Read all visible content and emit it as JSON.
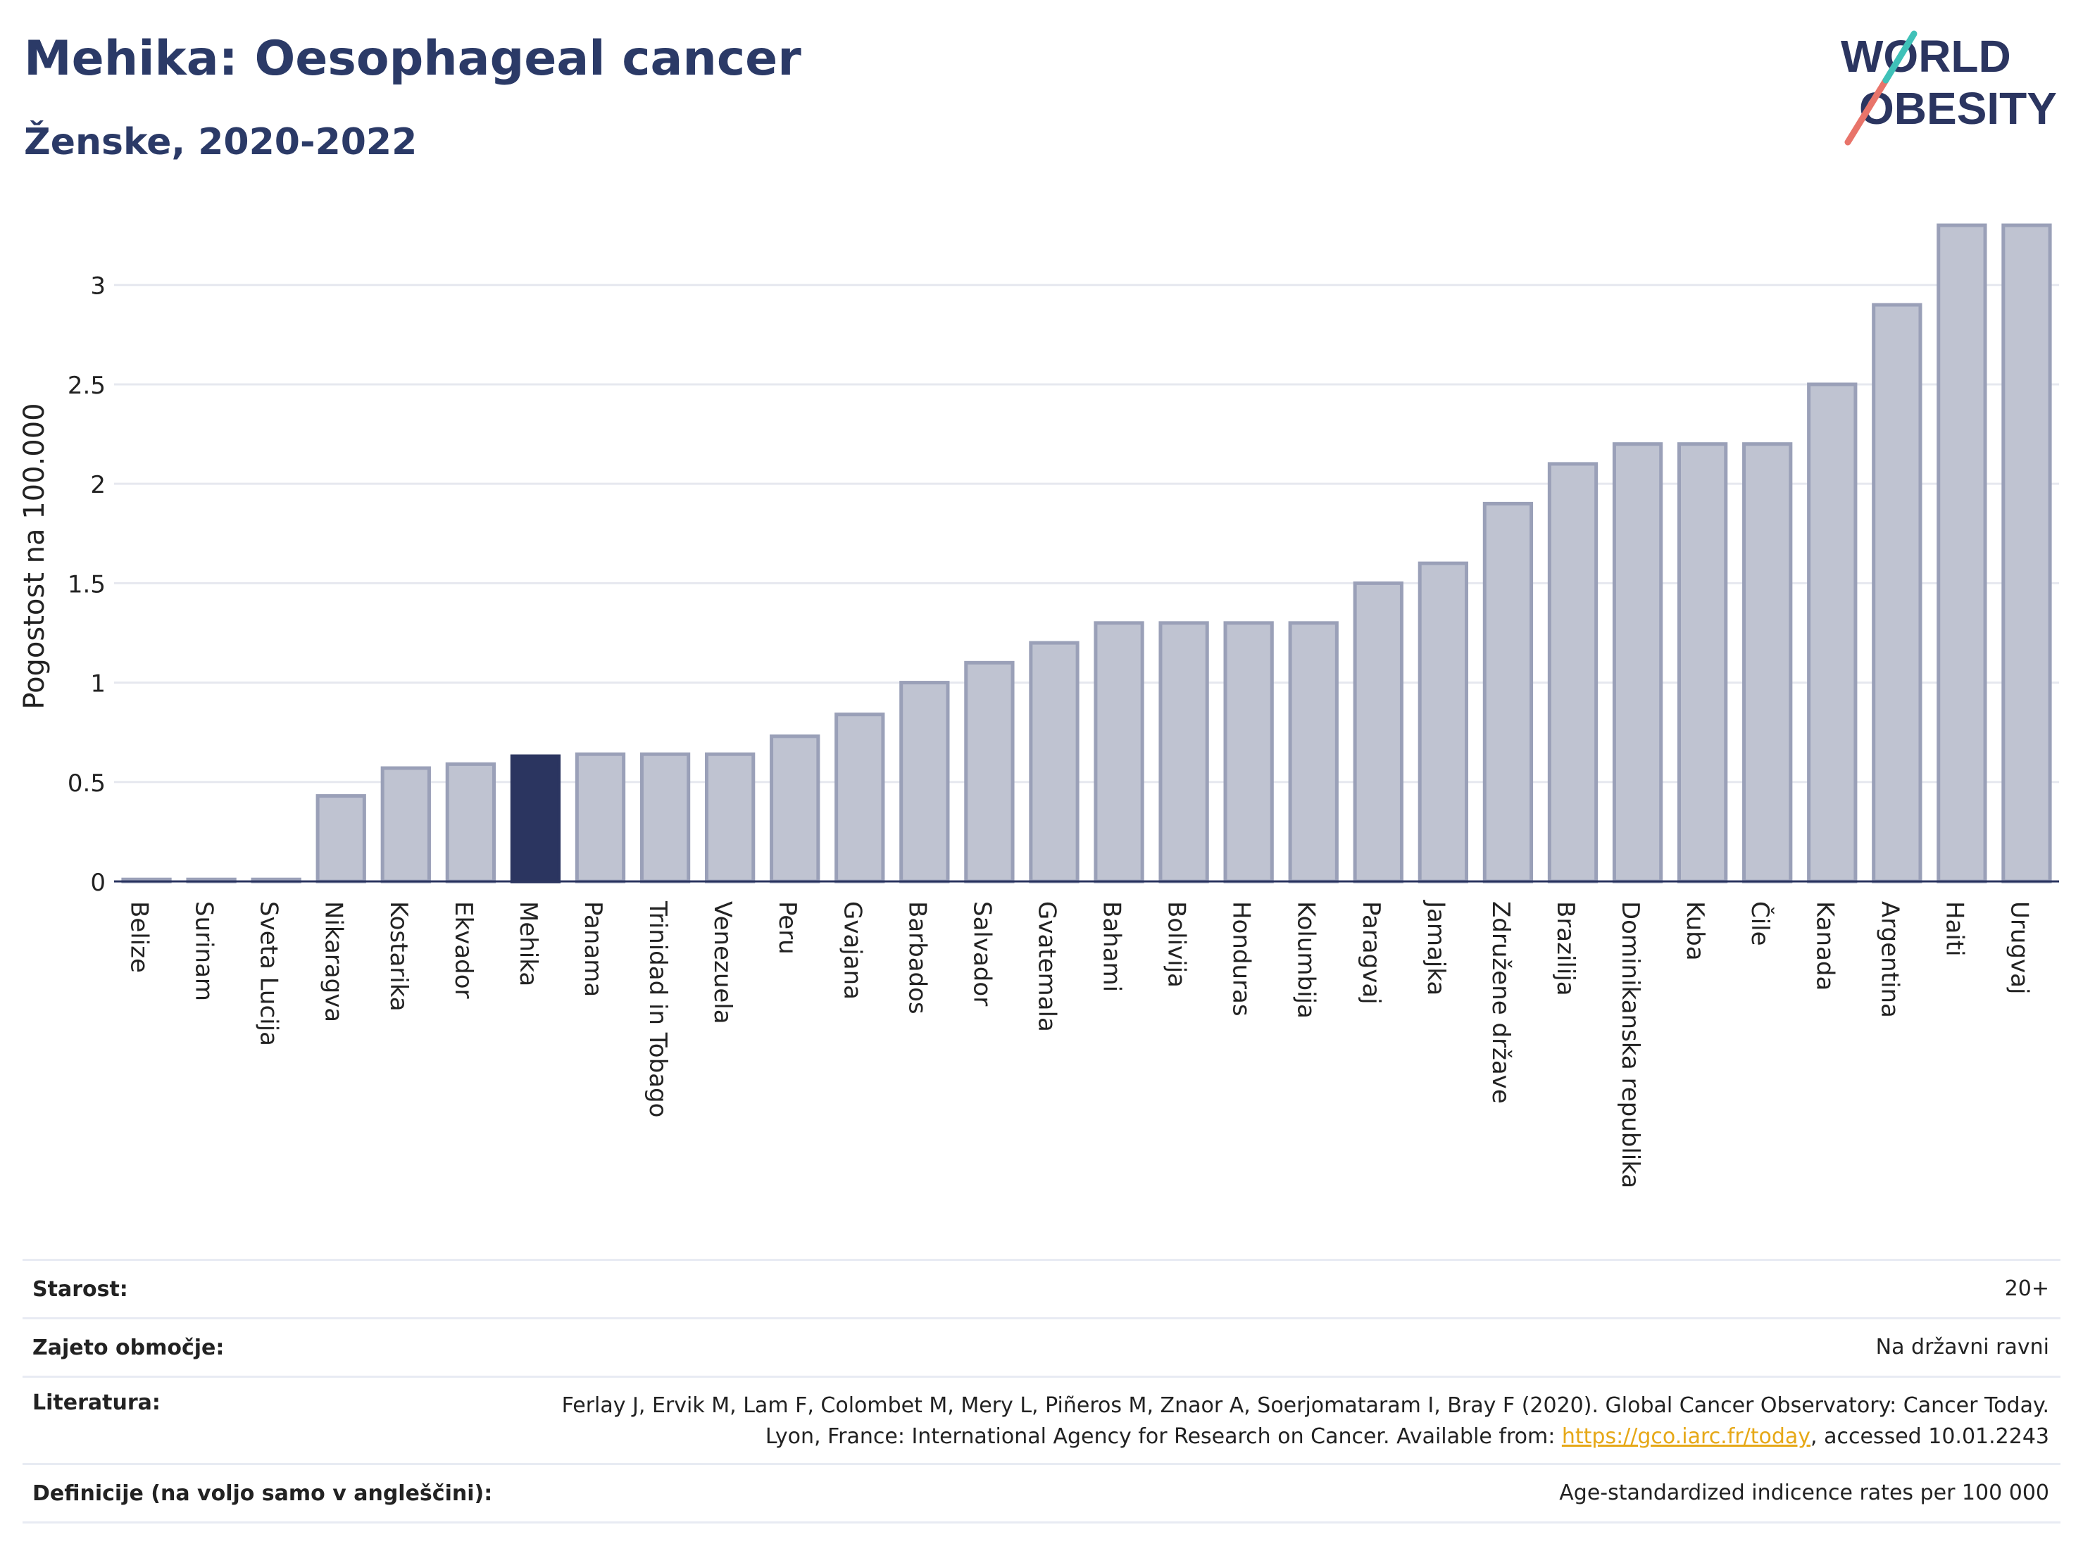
{
  "header": {
    "title": "Mehika: Oesophageal cancer",
    "subtitle": "Ženske, 2020-2022"
  },
  "logo": {
    "line1": "WORLD",
    "line2": "OBESITY"
  },
  "chart_data": {
    "type": "bar",
    "title": "Mehika: Oesophageal cancer",
    "subtitle": "Ženske, 2020-2022",
    "xlabel": "",
    "ylabel": "Pogostost na 100.000",
    "ylim": [
      0,
      3.3
    ],
    "yticks": [
      0,
      0.5,
      1,
      1.5,
      2,
      2.5,
      3
    ],
    "ytick_labels": [
      "0",
      "0.5",
      "1",
      "1.5",
      "2",
      "2.5",
      "3"
    ],
    "grid": true,
    "highlight": "Mehika",
    "colors": {
      "highlight": "#2b3560",
      "bar": "#bfc3d1",
      "bar_border": "#9aa0b8",
      "grid": "#e6e8ef"
    },
    "categories": [
      "Belize",
      "Surinam",
      "Sveta Lucija",
      "Nikaragva",
      "Kostarika",
      "Ekvador",
      "Mehika",
      "Panama",
      "Trinidad in Tobago",
      "Venezuela",
      "Peru",
      "Gvajana",
      "Barbados",
      "Salvador",
      "Gvatemala",
      "Bahami",
      "Bolivija",
      "Honduras",
      "Kolumbija",
      "Paragvaj",
      "Jamajka",
      "Združene države",
      "Brazilija",
      "Dominikanska republika",
      "Kuba",
      "Čile",
      "Kanada",
      "Argentina",
      "Haiti",
      "Urugvaj"
    ],
    "values": [
      0.01,
      0.01,
      0.01,
      0.43,
      0.57,
      0.59,
      0.63,
      0.64,
      0.64,
      0.64,
      0.73,
      0.84,
      1.0,
      1.1,
      1.2,
      1.3,
      1.3,
      1.3,
      1.3,
      1.5,
      1.6,
      1.9,
      2.1,
      2.2,
      2.2,
      2.2,
      2.5,
      2.9,
      3.3,
      3.3
    ]
  },
  "meta": [
    {
      "key": "Starost:",
      "value": "20+"
    },
    {
      "key": "Zajeto območje:",
      "value": "Na državni ravni"
    },
    {
      "key": "Literatura:",
      "value_before": "Ferlay J, Ervik M, Lam F, Colombet M, Mery L, Piñeros M, Znaor A, Soerjomataram I, Bray F (2020). Global Cancer Observatory: Cancer Today. Lyon, France: International Agency for Research on Cancer. Available from: ",
      "link": "https://gco.iarc.fr/today",
      "value_after": ", accessed 10.01.2243"
    },
    {
      "key": "Definicije (na voljo samo v angleščini):",
      "value": "Age-standardized indicence rates per 100 000"
    }
  ]
}
